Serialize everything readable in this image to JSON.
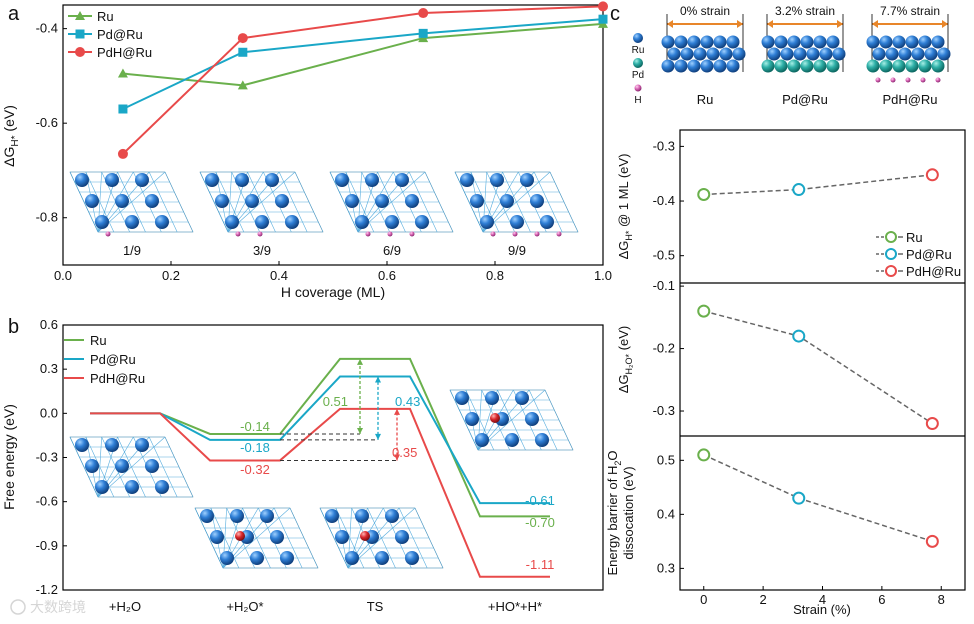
{
  "panel_letters": {
    "a": "a",
    "b": "b",
    "c": "c"
  },
  "chart_data": [
    {
      "type": "line",
      "panel": "a",
      "xlabel": "H coverage (ML)",
      "ylabel_main": "ΔG",
      "ylabel_sub": "H*",
      "ylabel_unit": " (eV)",
      "xlim": [
        0.0,
        1.0
      ],
      "ylim": [
        -0.9,
        -0.35
      ],
      "xticks": [
        "0.0",
        "0.2",
        "0.4",
        "0.6",
        "0.8",
        "1.0"
      ],
      "yticks": [
        "-0.4",
        "-0.6",
        "-0.8"
      ],
      "x": [
        0.111,
        0.333,
        0.667,
        1.0
      ],
      "series": [
        {
          "name": "Ru",
          "color": "#6ab04c",
          "marker": "triangle",
          "values": [
            -0.495,
            -0.52,
            -0.42,
            -0.39
          ]
        },
        {
          "name": "Pd@Ru",
          "color": "#1aa7c7",
          "marker": "square",
          "values": [
            -0.57,
            -0.45,
            -0.41,
            -0.38
          ]
        },
        {
          "name": "PdH@Ru",
          "color": "#e84a4a",
          "marker": "circle",
          "values": [
            -0.665,
            -0.42,
            -0.367,
            -0.353
          ]
        }
      ],
      "legend_position": "top-left",
      "inset_labels": [
        "1/9",
        "3/9",
        "6/9",
        "9/9"
      ]
    },
    {
      "type": "line",
      "panel": "b",
      "ylabel": "Free energy (eV)",
      "ylim": [
        -1.2,
        0.6
      ],
      "yticks": [
        "0.6",
        "0.3",
        "0.0",
        "-0.3",
        "-0.6",
        "-0.9",
        "-1.2"
      ],
      "categories": [
        "+H₂O",
        "+H₂O*",
        "TS",
        "+HO*+H*"
      ],
      "series": [
        {
          "name": "Ru",
          "color": "#6ab04c",
          "values": [
            0.0,
            -0.14,
            0.37,
            -0.7
          ]
        },
        {
          "name": "Pd@Ru",
          "color": "#1aa7c7",
          "values": [
            0.0,
            -0.18,
            0.25,
            -0.61
          ]
        },
        {
          "name": "PdH@Ru",
          "color": "#e84a4a",
          "values": [
            0.0,
            -0.32,
            0.03,
            -1.11
          ]
        }
      ],
      "level_labels": [
        {
          "text": "-0.14",
          "series": 0
        },
        {
          "text": "-0.18",
          "series": 1
        },
        {
          "text": "-0.32",
          "series": 2
        },
        {
          "text": "-0.61",
          "series": 1
        },
        {
          "text": "-0.70",
          "series": 0
        },
        {
          "text": "-1.11",
          "series": 2
        }
      ],
      "barriers": [
        {
          "text": "0.51",
          "series": 0
        },
        {
          "text": "0.43",
          "series": 1
        },
        {
          "text": "0.35",
          "series": 2
        }
      ],
      "legend_position": "top-left"
    },
    {
      "type": "scatter",
      "panel": "c",
      "xlabel": "Strain (%)",
      "xlim": [
        -0.8,
        8.8
      ],
      "xticks": [
        "0",
        "2",
        "4",
        "6",
        "8"
      ],
      "x": [
        0.0,
        3.2,
        7.7
      ],
      "series_names": [
        "Ru",
        "Pd@Ru",
        "PdH@Ru"
      ],
      "series_colors": [
        "#6ab04c",
        "#1aa7c7",
        "#e84a4a"
      ],
      "subplots": [
        {
          "ylabel_line1": "ΔG",
          "ylabel_sub": "H*",
          "ylabel_rest": " @ 1 ML (eV)",
          "ylim": [
            -0.55,
            -0.27
          ],
          "yticks": [
            "-0.3",
            "-0.4",
            "-0.5"
          ],
          "values": [
            -0.388,
            -0.379,
            -0.352
          ],
          "legend_position": "bottom-right"
        },
        {
          "ylabel_line1": "ΔG",
          "ylabel_sub": "H₂O*",
          "ylabel_rest": " (eV)",
          "ylim": [
            -0.34,
            -0.095
          ],
          "yticks": [
            "-0.1",
            "-0.2",
            "-0.3"
          ],
          "values": [
            -0.14,
            -0.18,
            -0.32
          ]
        },
        {
          "ylabel_line1": "Energy barrier of H",
          "ylabel_sub": "2",
          "ylabel_rest": "O",
          "ylabel_line2": "dissocation (eV)",
          "ylim": [
            0.26,
            0.545
          ],
          "yticks": [
            "0.5",
            "0.4",
            "0.3"
          ],
          "values": [
            0.51,
            0.43,
            0.35
          ]
        }
      ],
      "schematic": {
        "atom_legend": [
          "Ru",
          "Pd",
          "H"
        ],
        "atom_colors": [
          "#2d6fbf",
          "#2aa6a0",
          "#d05aa8"
        ],
        "strain_labels": [
          "0% strain",
          "3.2% strain",
          "7.7% strain"
        ],
        "model_labels": [
          "Ru",
          "Pd@Ru",
          "PdH@Ru"
        ]
      }
    }
  ],
  "watermark": "大数跨境"
}
